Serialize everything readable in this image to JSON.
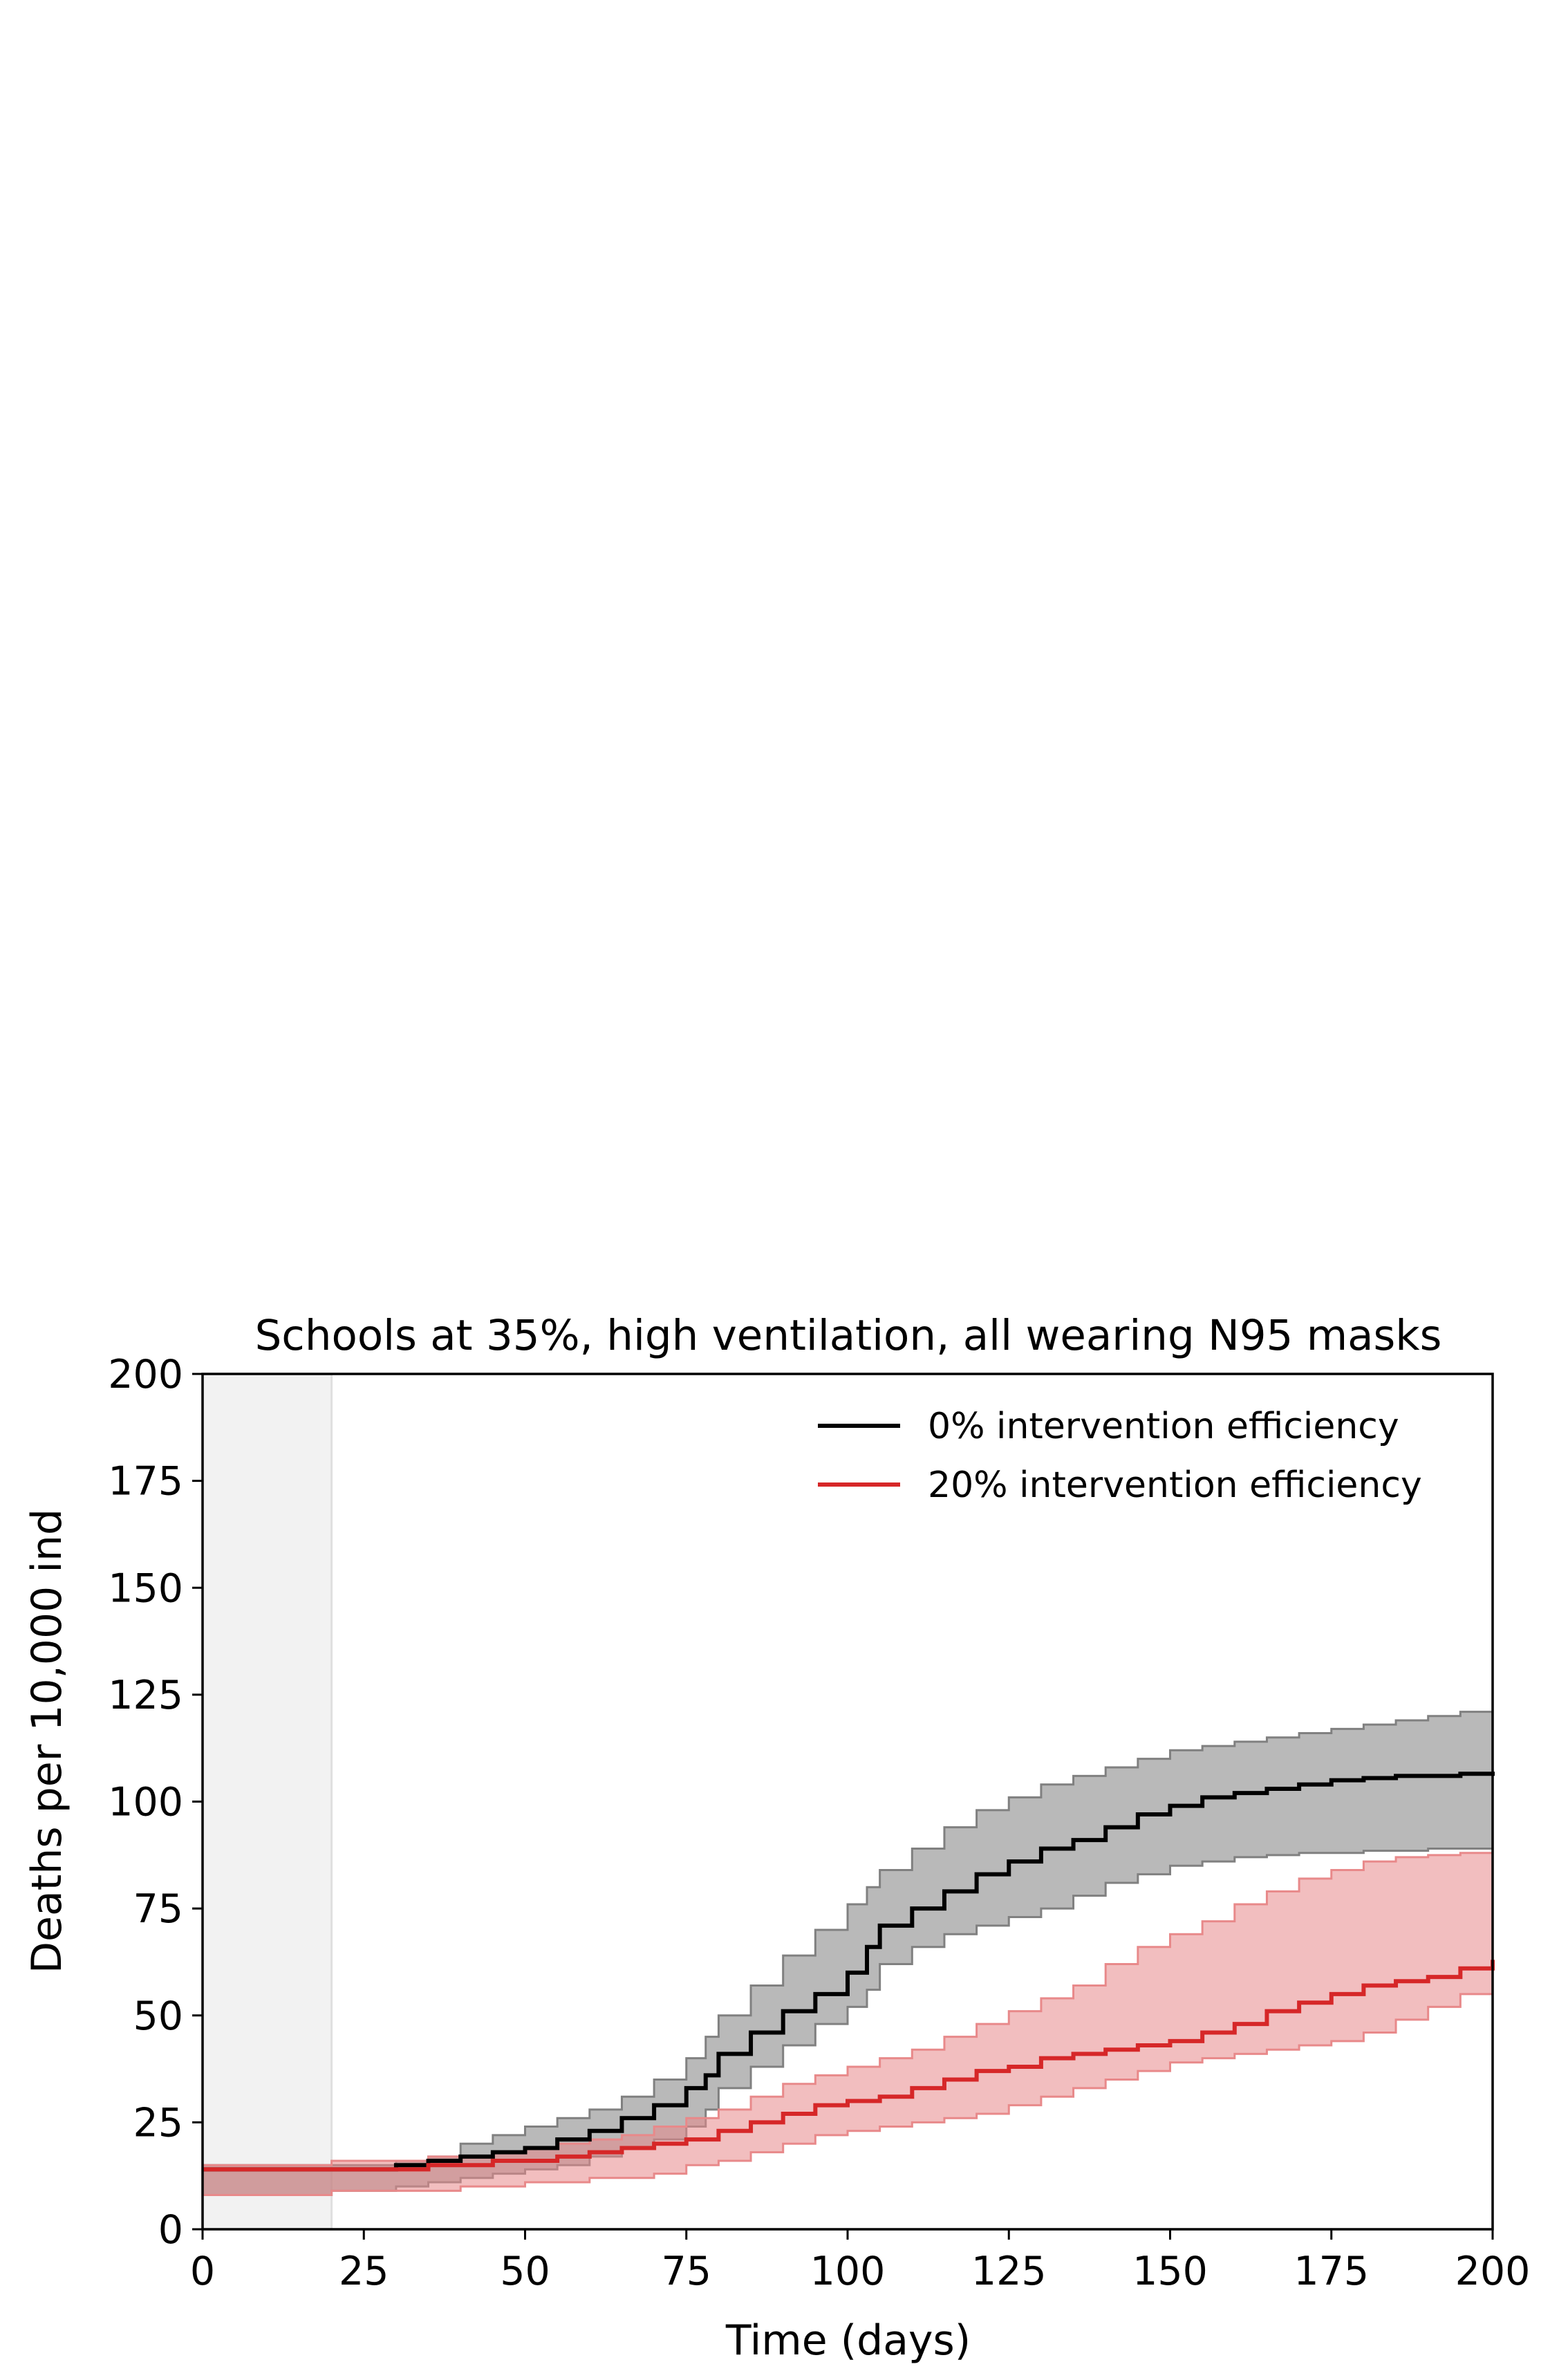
{
  "chart_data": {
    "type": "line",
    "title": "Schools at 35%, high ventilation, all wearing N95 masks",
    "xlabel": "Time (days)",
    "ylabel": "Deaths per 10,000 ind",
    "xlim": [
      0,
      200
    ],
    "ylim": [
      0,
      200
    ],
    "xticks": [
      0,
      25,
      50,
      75,
      100,
      125,
      150,
      175,
      200
    ],
    "yticks": [
      0,
      25,
      50,
      75,
      100,
      125,
      150,
      175,
      200
    ],
    "grid": false,
    "legend_position": "top-right",
    "shaded_region": {
      "x_start": 0,
      "x_end": 20,
      "color": "#f2f2f2"
    },
    "series": [
      {
        "name": "0% intervention efficiency",
        "color": "#000000",
        "band_color": "#808080",
        "x": [
          0,
          10,
          20,
          30,
          35,
          40,
          45,
          50,
          55,
          60,
          65,
          70,
          75,
          78,
          80,
          85,
          90,
          95,
          100,
          103,
          105,
          110,
          115,
          120,
          125,
          130,
          135,
          140,
          145,
          150,
          155,
          160,
          165,
          170,
          175,
          180,
          185,
          190,
          195,
          200
        ],
        "mean": [
          14,
          14,
          14,
          15,
          16,
          17,
          18,
          19,
          21,
          23,
          26,
          29,
          33,
          36,
          41,
          46,
          51,
          55,
          60,
          66,
          71,
          75,
          79,
          83,
          86,
          89,
          91,
          94,
          97,
          99,
          101,
          102,
          103,
          104,
          105,
          105.5,
          106,
          106,
          106.5,
          107
        ],
        "lower": [
          8,
          8,
          8,
          9,
          10,
          11,
          12,
          13,
          14,
          15,
          17,
          19,
          21,
          24,
          28,
          33,
          38,
          43,
          48,
          52,
          56,
          62,
          66,
          69,
          71,
          73,
          75,
          78,
          81,
          83,
          85,
          86,
          87,
          87.5,
          88,
          88,
          88.5,
          88.5,
          89,
          89
        ],
        "upper": [
          15,
          15,
          15,
          16,
          17,
          20,
          22,
          24,
          26,
          28,
          31,
          35,
          40,
          45,
          50,
          57,
          64,
          70,
          76,
          80,
          84,
          89,
          94,
          98,
          101,
          104,
          106,
          108,
          110,
          112,
          113,
          114,
          115,
          116,
          117,
          118,
          119,
          120,
          121,
          122
        ]
      },
      {
        "name": "20% intervention efficiency",
        "color": "#d62728",
        "band_color": "#e8898a",
        "x": [
          0,
          10,
          20,
          30,
          35,
          40,
          45,
          50,
          55,
          60,
          65,
          70,
          75,
          80,
          85,
          90,
          95,
          100,
          105,
          110,
          115,
          120,
          125,
          130,
          135,
          140,
          145,
          150,
          155,
          160,
          165,
          170,
          175,
          180,
          185,
          190,
          195,
          200
        ],
        "mean": [
          14,
          14,
          14,
          14,
          15,
          15,
          16,
          16,
          17,
          18,
          19,
          20,
          21,
          23,
          25,
          27,
          29,
          30,
          31,
          33,
          35,
          37,
          38,
          40,
          41,
          42,
          43,
          44,
          46,
          48,
          51,
          53,
          55,
          57,
          58,
          59,
          61,
          63
        ],
        "lower": [
          8,
          8,
          8,
          9,
          9,
          9,
          10,
          10,
          11,
          11,
          12,
          12,
          13,
          15,
          16,
          18,
          20,
          22,
          23,
          24,
          25,
          26,
          27,
          29,
          31,
          33,
          35,
          37,
          39,
          40,
          41,
          42,
          43,
          44,
          46,
          49,
          52,
          55
        ],
        "upper": [
          15,
          15,
          16,
          16,
          17,
          17,
          18,
          19,
          20,
          21,
          22,
          24,
          26,
          28,
          31,
          34,
          36,
          38,
          40,
          42,
          45,
          48,
          51,
          54,
          57,
          62,
          66,
          69,
          72,
          76,
          79,
          82,
          84,
          86,
          87,
          87.5,
          88,
          89
        ]
      }
    ]
  }
}
